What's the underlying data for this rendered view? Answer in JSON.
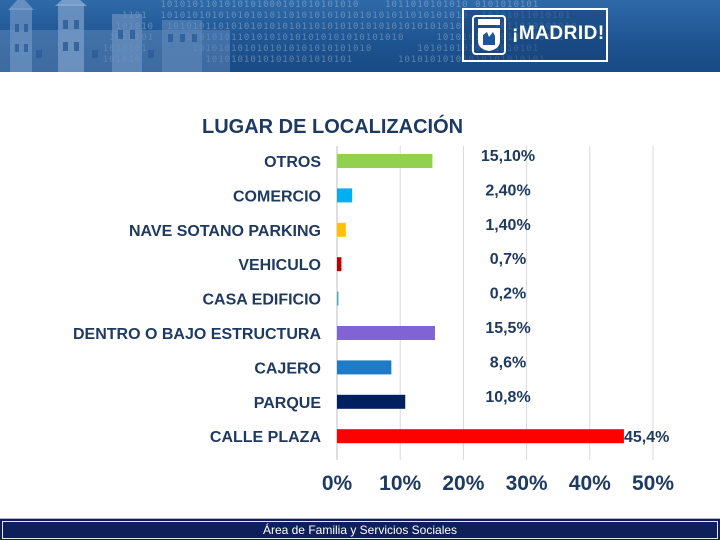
{
  "header": {
    "logo_text": "¡MADRID!"
  },
  "footer": {
    "text": "Área de Familia y Servicios Sociales"
  },
  "colors": {
    "banner": "#1f5592",
    "footer": "#0f1f5a",
    "label": "#1e3a60"
  },
  "chart_data": {
    "type": "bar",
    "orientation": "horizontal",
    "title": "LUGAR DE LOCALIZACIÓN",
    "xlabel": "",
    "ylabel": "",
    "xlim": [
      0,
      50
    ],
    "x_ticks": [
      "0%",
      "10%",
      "20%",
      "30%",
      "40%",
      "50%"
    ],
    "grid": true,
    "categories": [
      "OTROS",
      "COMERCIO",
      "NAVE SOTANO PARKING",
      "VEHICULO",
      "CASA EDIFICIO",
      "DENTRO O BAJO ESTRUCTURA",
      "CAJERO",
      "PARQUE",
      "CALLE PLAZA"
    ],
    "values": [
      15.1,
      2.4,
      1.4,
      0.7,
      0.2,
      15.5,
      8.6,
      10.8,
      45.4
    ],
    "value_labels": [
      "15,10%",
      "2,40%",
      "1,40%",
      "0,7%",
      "0,2%",
      "15,5%",
      "8,6%",
      "10,8%",
      "45,4%"
    ],
    "bar_colors": [
      "#92d050",
      "#00b0f0",
      "#ffc000",
      "#c00000",
      "#4bacc6",
      "#8064d4",
      "#1f7bc8",
      "#002060",
      "#ff0000"
    ]
  }
}
